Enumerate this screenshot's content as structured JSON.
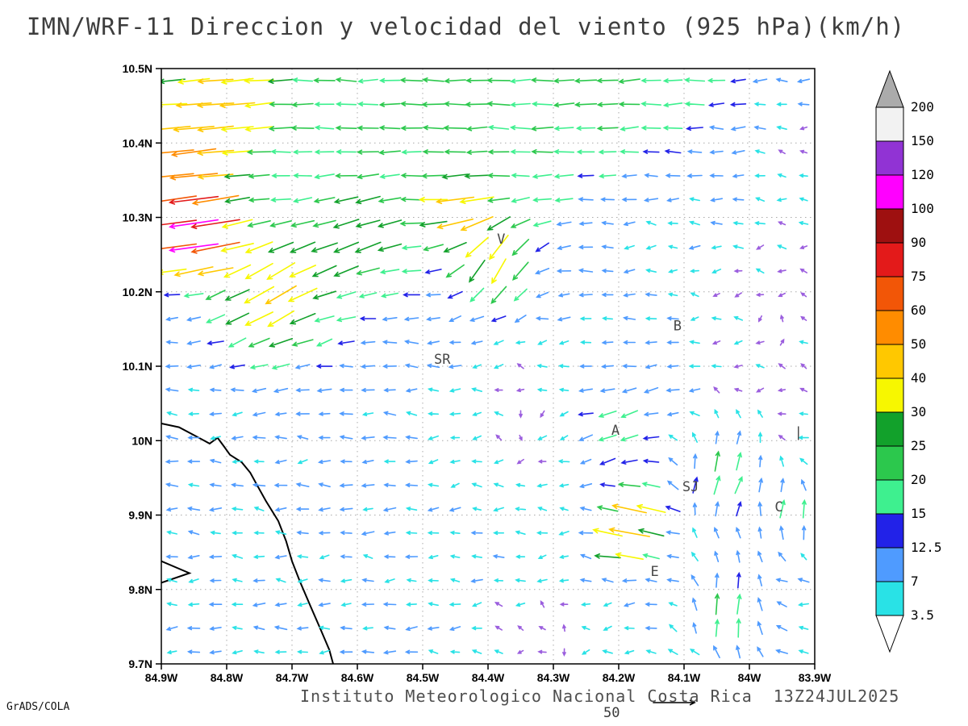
{
  "title": "IMN/WRF-11 Direccion y velocidad del viento (925 hPa)(km/h)",
  "footer": {
    "institute": "Instituto Meteorologico Nacional Costa Rica",
    "datetime": "13Z24JUL2025",
    "credit": "GrADS/COLA",
    "ref_label": "50"
  },
  "chart_data": {
    "type": "vector_field",
    "title": "IMN/WRF-11 Direccion y velocidad del viento (925 hPa)(km/h)",
    "units": "km/h",
    "level": "925 hPa",
    "lon_w_left": 84.9,
    "lon_w_right": 83.9,
    "lat_top": 10.5,
    "lat_bottom": 9.7,
    "x_ticks": [
      "84.9W",
      "84.8W",
      "84.7W",
      "84.6W",
      "84.5W",
      "84.4W",
      "84.3W",
      "84.2W",
      "84.1W",
      "84W",
      "83.9W"
    ],
    "y_ticks": [
      "10.5N",
      "10.4N",
      "10.3N",
      "10.2N",
      "10.1N",
      "10N",
      "9.9N",
      "9.8N",
      "9.7N"
    ],
    "grid": "dotted 0.1 degree",
    "legend_position": "right colorbar",
    "colorbar": {
      "levels": [
        3.5,
        7,
        12.5,
        15,
        20,
        25,
        30,
        40,
        50,
        60,
        75,
        90,
        100,
        120,
        150,
        200
      ],
      "labels": [
        "3.5",
        "7",
        "12.5",
        "15",
        "20",
        "25",
        "30",
        "40",
        "50",
        "60",
        "75",
        "90",
        "100",
        "120",
        "150",
        "200"
      ],
      "colors": [
        "#29e2e6",
        "#4f9bff",
        "#2222e8",
        "#3ef08f",
        "#2cc84d",
        "#12a12b",
        "#f7f700",
        "#ffc800",
        "#ff8c00",
        "#f25607",
        "#e31a1a",
        "#9e1010",
        "#ff00ff",
        "#9133d4",
        "#f2f2f2"
      ],
      "below_color": "#ffffff",
      "above_color": "#ababab",
      "below_min_arrow_color": "#9b5ede"
    },
    "reference_vector": {
      "speed": 50
    },
    "stations": [
      {
        "label": "V",
        "lon": 84.38,
        "lat": 10.265
      },
      {
        "label": "B",
        "lon": 84.11,
        "lat": 10.148
      },
      {
        "label": "SR",
        "lon": 84.47,
        "lat": 10.103
      },
      {
        "label": "A",
        "lon": 84.205,
        "lat": 10.008
      },
      {
        "label": "SJ",
        "lon": 84.09,
        "lat": 9.932
      },
      {
        "label": "C",
        "lon": 83.955,
        "lat": 9.905
      },
      {
        "label": "E",
        "lon": 84.145,
        "lat": 9.818
      },
      {
        "label": "|",
        "lon": 83.925,
        "lat": 10.005
      }
    ],
    "coastlines": [
      [
        [
          84.9,
          10.023
        ],
        [
          84.873,
          10.018
        ],
        [
          84.847,
          10.006
        ],
        [
          84.826,
          9.996
        ],
        [
          84.814,
          10.004
        ],
        [
          84.804,
          9.992
        ],
        [
          84.795,
          9.981
        ],
        [
          84.777,
          9.971
        ],
        [
          84.764,
          9.957
        ],
        [
          84.754,
          9.941
        ],
        [
          84.74,
          9.919
        ],
        [
          84.721,
          9.892
        ],
        [
          84.709,
          9.865
        ],
        [
          84.7,
          9.838
        ],
        [
          84.688,
          9.811
        ],
        [
          84.672,
          9.778
        ],
        [
          84.656,
          9.746
        ],
        [
          84.643,
          9.719
        ],
        [
          84.637,
          9.7
        ]
      ],
      [
        [
          84.9,
          9.838
        ],
        [
          84.857,
          9.822
        ],
        [
          84.9,
          9.809
        ]
      ]
    ],
    "field": {
      "grid": {
        "nx": 30,
        "ny": 25
      },
      "base": {
        "u": -7,
        "v": 0
      },
      "noise": {
        "amp": 2.2,
        "seed": 7
      },
      "features": [
        {
          "lon": 84.5,
          "lat": 10.48,
          "u": -15,
          "v": 0,
          "r": 0.3
        },
        {
          "lon": 84.15,
          "lat": 10.47,
          "u": -12,
          "v": -1,
          "r": 0.18
        },
        {
          "lon": 84.82,
          "lat": 10.46,
          "u": -28,
          "v": -4,
          "r": 0.1
        },
        {
          "lon": 84.87,
          "lat": 10.37,
          "u": -34,
          "v": -5,
          "r": 0.06
        },
        {
          "lon": 84.85,
          "lat": 10.28,
          "u": -100,
          "v": -16,
          "r": 0.05
        },
        {
          "lon": 84.73,
          "lat": 10.2,
          "u": -25,
          "v": -19,
          "r": 0.085
        },
        {
          "lon": 84.6,
          "lat": 10.27,
          "u": -12,
          "v": -9,
          "r": 0.07
        },
        {
          "lon": 84.39,
          "lat": 10.24,
          "u": -5,
          "v": -30,
          "r": 0.06
        },
        {
          "lon": 84.44,
          "lat": 10.31,
          "u": -31,
          "v": -3,
          "r": 0.045
        },
        {
          "lon": 84.35,
          "lat": 10.03,
          "u": 6.5,
          "v": 0,
          "r": 0.13
        },
        {
          "lon": 84.15,
          "lat": 10.33,
          "u": 6.5,
          "v": 0.5,
          "r": 0.15
        },
        {
          "lon": 83.95,
          "lat": 10.15,
          "u": 6,
          "v": 0,
          "r": 0.12
        },
        {
          "lon": 83.93,
          "lat": 10.38,
          "u": 6,
          "v": 0.5,
          "r": 0.1
        },
        {
          "lon": 84.2,
          "lat": 10.02,
          "u": -11,
          "v": -6,
          "r": 0.07
        },
        {
          "lon": 84.17,
          "lat": 9.9,
          "u": -30,
          "v": 8,
          "r": 0.045
        },
        {
          "lon": 84.04,
          "lat": 9.95,
          "u": 14,
          "v": 20,
          "r": 0.07
        },
        {
          "lon": 84.03,
          "lat": 9.77,
          "u": 10,
          "v": 22,
          "r": 0.06
        },
        {
          "lon": 83.93,
          "lat": 9.9,
          "u": 9,
          "v": 16,
          "r": 0.05
        },
        {
          "lon": 84.2,
          "lat": 9.86,
          "u": -30,
          "v": 5,
          "r": 0.035
        },
        {
          "lon": 84.3,
          "lat": 9.74,
          "u": 6,
          "v": 0,
          "r": 0.09
        }
      ]
    }
  }
}
